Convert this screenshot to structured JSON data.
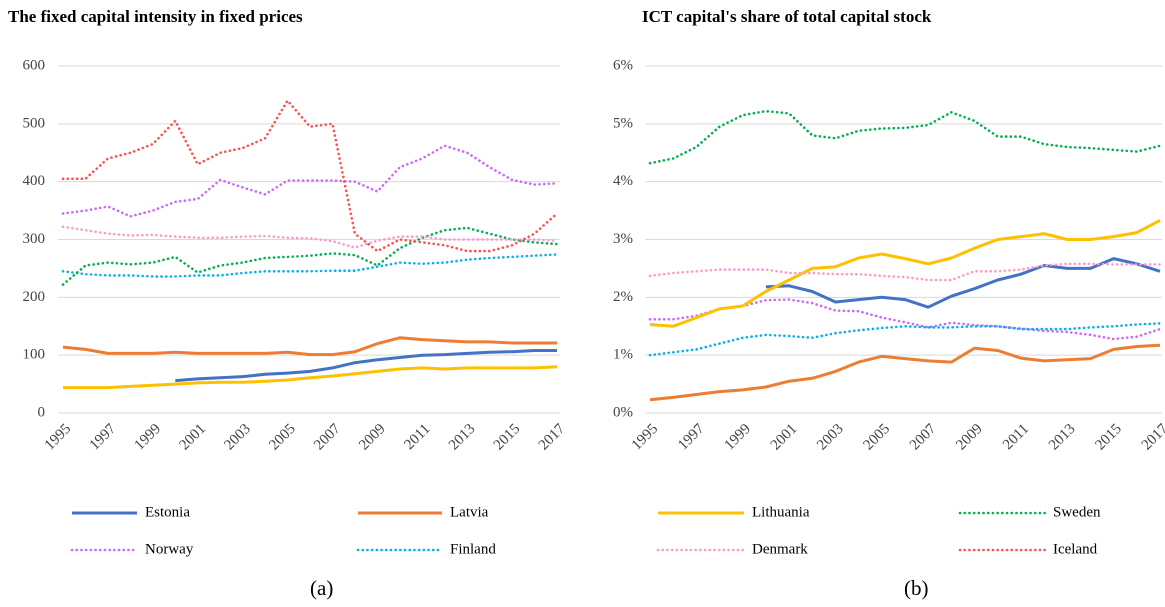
{
  "legend": [
    {
      "name": "Estonia",
      "color": "#4472c4",
      "style": "solid"
    },
    {
      "name": "Latvia",
      "color": "#ed7d31",
      "style": "solid"
    },
    {
      "name": "Norway",
      "color": "#cc66ff",
      "style": "dotted"
    },
    {
      "name": "Finland",
      "color": "#00b0f0",
      "style": "dotted"
    },
    {
      "name": "Lithuania",
      "color": "#ffc000",
      "style": "solid"
    },
    {
      "name": "Sweden",
      "color": "#00b050",
      "style": "dotted"
    },
    {
      "name": "Denmark",
      "color": "#ff99cc",
      "style": "dotted"
    },
    {
      "name": "Iceland",
      "color": "#ff5050",
      "style": "dotted"
    }
  ],
  "chart_data": [
    {
      "type": "line",
      "title": "The fixed capital intensity in fixed prices",
      "caption": "(a)",
      "x": [
        1995,
        1996,
        1997,
        1998,
        1999,
        2000,
        2001,
        2002,
        2003,
        2004,
        2005,
        2006,
        2007,
        2008,
        2009,
        2010,
        2011,
        2012,
        2013,
        2014,
        2015,
        2016,
        2017
      ],
      "xlim": [
        1995,
        2017
      ],
      "xticks": [
        1995,
        1997,
        1999,
        2001,
        2003,
        2005,
        2007,
        2009,
        2011,
        2013,
        2015,
        2017
      ],
      "ylim": [
        0,
        600
      ],
      "yticks": [
        0,
        100,
        200,
        300,
        400,
        500,
        600
      ],
      "grid": true,
      "series": [
        {
          "values": [
            null,
            null,
            null,
            null,
            null,
            56,
            59,
            61,
            63,
            67,
            69,
            72,
            78,
            87,
            92,
            96,
            100,
            101,
            103,
            105,
            106,
            108,
            108
          ]
        },
        {
          "values": [
            114,
            110,
            103,
            103,
            103,
            105,
            103,
            103,
            103,
            103,
            105,
            101,
            101,
            106,
            120,
            130,
            127,
            125,
            123,
            123,
            121,
            121,
            121
          ]
        },
        {
          "values": [
            345,
            350,
            357,
            340,
            350,
            365,
            370,
            403,
            390,
            378,
            402,
            402,
            402,
            400,
            383,
            425,
            440,
            462,
            450,
            425,
            403,
            395,
            397
          ]
        },
        {
          "values": [
            245,
            240,
            238,
            238,
            236,
            236,
            238,
            238,
            242,
            245,
            245,
            245,
            246,
            246,
            253,
            260,
            258,
            260,
            265,
            268,
            270,
            272,
            274
          ]
        },
        {
          "values": [
            44,
            44,
            44,
            46,
            48,
            50,
            52,
            53,
            53,
            55,
            57,
            61,
            64,
            68,
            72,
            76,
            78,
            76,
            78,
            78,
            78,
            78,
            80
          ]
        },
        {
          "values": [
            222,
            255,
            260,
            257,
            260,
            270,
            243,
            255,
            260,
            268,
            270,
            272,
            276,
            273,
            255,
            285,
            303,
            316,
            320,
            310,
            300,
            295,
            292
          ]
        },
        {
          "values": [
            322,
            316,
            310,
            307,
            308,
            305,
            303,
            303,
            305,
            306,
            303,
            302,
            297,
            286,
            298,
            305,
            305,
            300,
            300,
            300,
            300,
            300,
            298
          ]
        },
        {
          "values": [
            405,
            405,
            440,
            450,
            465,
            505,
            430,
            450,
            458,
            475,
            540,
            495,
            500,
            310,
            280,
            300,
            295,
            290,
            280,
            280,
            290,
            310,
            345
          ]
        }
      ]
    },
    {
      "type": "line",
      "title": "ICT capital's share of total capital stock",
      "caption": "(b)",
      "x": [
        1995,
        1996,
        1997,
        1998,
        1999,
        2000,
        2001,
        2002,
        2003,
        2004,
        2005,
        2006,
        2007,
        2008,
        2009,
        2010,
        2011,
        2012,
        2013,
        2014,
        2015,
        2016,
        2017
      ],
      "xlim": [
        1995,
        2017
      ],
      "xticks": [
        1995,
        1997,
        1999,
        2001,
        2003,
        2005,
        2007,
        2009,
        2011,
        2013,
        2015,
        2017
      ],
      "ylim": [
        0,
        6
      ],
      "yticks": [
        {
          "value": 0,
          "label": "0%"
        },
        {
          "value": 1,
          "label": "1%"
        },
        {
          "value": 2,
          "label": "2%"
        },
        {
          "value": 3,
          "label": "3%"
        },
        {
          "value": 4,
          "label": "4%"
        },
        {
          "value": 5,
          "label": "5%"
        },
        {
          "value": 6,
          "label": "6%"
        }
      ],
      "grid": true,
      "series": [
        {
          "values": [
            null,
            null,
            null,
            null,
            null,
            2.18,
            2.2,
            2.1,
            1.92,
            1.96,
            2.0,
            1.96,
            1.83,
            2.02,
            2.15,
            2.3,
            2.4,
            2.55,
            2.5,
            2.5,
            2.67,
            2.58,
            2.45
          ]
        },
        {
          "values": [
            0.23,
            0.27,
            0.32,
            0.37,
            0.4,
            0.45,
            0.55,
            0.6,
            0.72,
            0.88,
            0.98,
            0.94,
            0.9,
            0.88,
            1.12,
            1.08,
            0.95,
            0.9,
            0.92,
            0.94,
            1.1,
            1.15,
            1.17
          ]
        },
        {
          "values": [
            1.62,
            1.62,
            1.68,
            1.8,
            1.85,
            1.95,
            1.96,
            1.9,
            1.77,
            1.76,
            1.65,
            1.57,
            1.48,
            1.56,
            1.52,
            1.5,
            1.46,
            1.42,
            1.4,
            1.35,
            1.28,
            1.32,
            1.45
          ]
        },
        {
          "values": [
            1.0,
            1.05,
            1.1,
            1.2,
            1.3,
            1.35,
            1.33,
            1.3,
            1.38,
            1.43,
            1.47,
            1.5,
            1.48,
            1.48,
            1.5,
            1.5,
            1.45,
            1.45,
            1.45,
            1.48,
            1.5,
            1.53,
            1.55
          ]
        },
        {
          "values": [
            1.53,
            1.5,
            1.65,
            1.8,
            1.85,
            2.1,
            2.3,
            2.5,
            2.53,
            2.68,
            2.75,
            2.67,
            2.58,
            2.68,
            2.85,
            3.0,
            3.05,
            3.1,
            3.0,
            3.0,
            3.05,
            3.12,
            3.33
          ]
        },
        {
          "values": [
            4.32,
            4.4,
            4.6,
            4.95,
            5.15,
            5.22,
            5.18,
            4.8,
            4.75,
            4.88,
            4.92,
            4.93,
            4.98,
            5.2,
            5.05,
            4.78,
            4.78,
            4.65,
            4.6,
            4.58,
            4.55,
            4.52,
            4.62
          ]
        },
        {
          "values": [
            2.37,
            2.42,
            2.45,
            2.48,
            2.48,
            2.48,
            2.42,
            2.42,
            2.4,
            2.4,
            2.37,
            2.35,
            2.3,
            2.3,
            2.45,
            2.45,
            2.48,
            2.55,
            2.58,
            2.58,
            2.57,
            2.57,
            2.57
          ]
        },
        {
          "values": [
            null,
            null,
            null,
            null,
            null,
            null,
            null,
            null,
            null,
            null,
            null,
            null,
            null,
            null,
            null,
            null,
            null,
            null,
            null,
            null,
            null,
            null,
            null
          ]
        }
      ]
    }
  ]
}
